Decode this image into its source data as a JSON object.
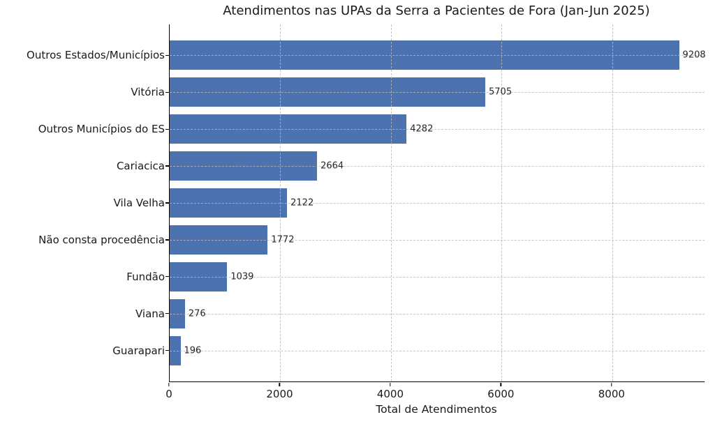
{
  "chart_data": {
    "type": "bar",
    "orientation": "horizontal",
    "title": "Atendimentos nas UPAs da Serra a Pacientes de Fora (Jan-Jun 2025)",
    "xlabel": "Total de Atendimentos",
    "ylabel": "",
    "categories": [
      "Outros Estados/Municípios",
      "Vitória",
      "Outros Municípios do ES",
      "Cariacica",
      "Vila Velha",
      "Não consta procedência",
      "Fundão",
      "Viana",
      "Guarapari"
    ],
    "values": [
      9208,
      5705,
      4282,
      2664,
      2122,
      1772,
      1039,
      276,
      196
    ],
    "value_labels": [
      "9208",
      "5705",
      "4282",
      "2664",
      "2122",
      "1772",
      "1039",
      "276",
      "196"
    ],
    "x_ticks": [
      0,
      2000,
      4000,
      6000,
      8000
    ],
    "x_tick_labels": [
      "0",
      "2000",
      "4000",
      "6000",
      "8000"
    ],
    "xlim": [
      0,
      9668
    ],
    "grid": "dashed-both-axes",
    "legend": "none",
    "bar_color": "#4c72b0",
    "grid_color": "#b9b9b9",
    "text_color": "#1a1a1a",
    "background_color": "#ffffff"
  }
}
